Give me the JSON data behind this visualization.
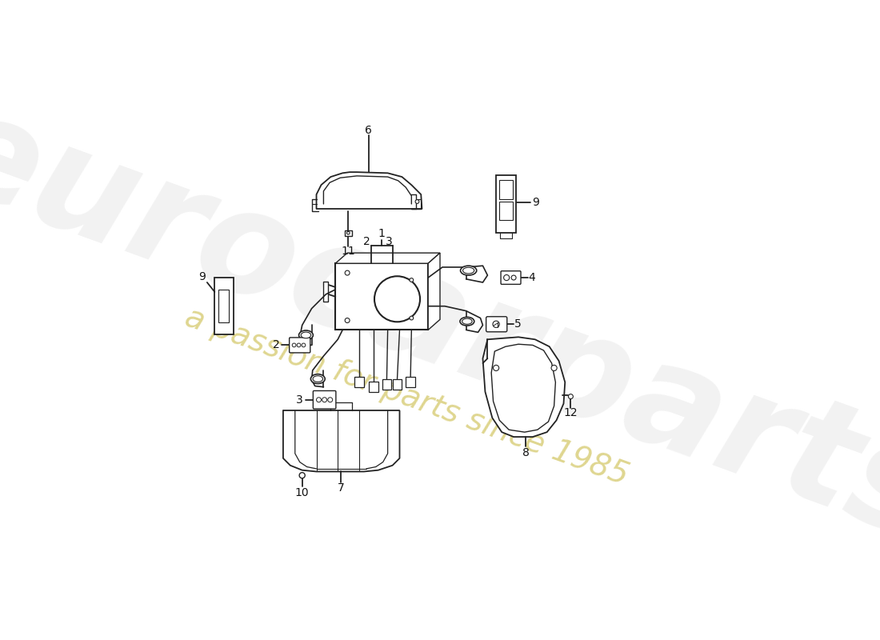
{
  "bg_color": "#ffffff",
  "line_color": "#222222",
  "watermark_text1": "eurocarparts",
  "watermark_text2": "a passion for parts since 1985",
  "watermark_color1": "#cccccc",
  "watermark_color2": "#d4c86a",
  "figsize": [
    11.0,
    8.0
  ],
  "dpi": 100
}
